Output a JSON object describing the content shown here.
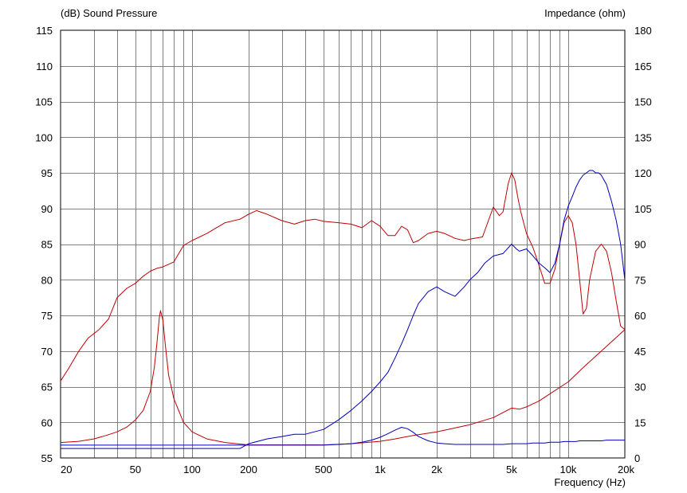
{
  "chart_data": {
    "type": "line",
    "xlabel": "Frequency  (Hz)",
    "ylabel_left": "(dB)  Sound Pressure",
    "ylabel_right": "Impedance  (ohm)",
    "x_scale": "log",
    "xlim": [
      20,
      20000
    ],
    "ylim_left": [
      55,
      115
    ],
    "ylim_right": [
      0,
      180
    ],
    "grid": true,
    "x_ticks": [
      {
        "v": 20,
        "label": "20"
      },
      {
        "v": 50,
        "label": "50"
      },
      {
        "v": 100,
        "label": "100"
      },
      {
        "v": 200,
        "label": "200"
      },
      {
        "v": 500,
        "label": "500"
      },
      {
        "v": 1000,
        "label": "1k"
      },
      {
        "v": 2000,
        "label": "2k"
      },
      {
        "v": 5000,
        "label": "5k"
      },
      {
        "v": 10000,
        "label": "10k"
      },
      {
        "v": 20000,
        "label": "20k"
      }
    ],
    "y_ticks_left": [
      "55",
      "60",
      "65",
      "70",
      "75",
      "80",
      "85",
      "90",
      "95",
      "100",
      "105",
      "110",
      "115"
    ],
    "y_ticks_right": [
      "0",
      "15",
      "30",
      "45",
      "60",
      "75",
      "90",
      "105",
      "120",
      "135",
      "150",
      "165",
      "180"
    ],
    "colors": {
      "red": "#c00000",
      "blue": "#0000c0",
      "grid": "#808080",
      "axis": "#000000"
    },
    "series": [
      {
        "color": "red",
        "axis": "left",
        "x": [
          20,
          22,
          25,
          28,
          32,
          36,
          40,
          45,
          50,
          55,
          60,
          65,
          70,
          80,
          90,
          100,
          120,
          150,
          180,
          200,
          220,
          250,
          300,
          350,
          400,
          450,
          500,
          600,
          700,
          800,
          850,
          900,
          1000,
          1100,
          1200,
          1300,
          1400,
          1500,
          1600,
          1800,
          2000,
          2200,
          2500,
          2800,
          3000,
          3500,
          4000,
          4300,
          4500,
          4800,
          5000,
          5200,
          5400,
          5600,
          6000,
          6500,
          7000,
          7500,
          8000,
          8500,
          9000,
          9500,
          10000,
          10500,
          11000,
          11500,
          12000,
          12500,
          13000,
          14000,
          15000,
          16000,
          17000,
          18000,
          19000,
          20000
        ],
        "y": [
          65.8,
          67.5,
          70,
          71.8,
          73,
          74.5,
          77.5,
          78.8,
          79.5,
          80.5,
          81.2,
          81.6,
          81.8,
          82.5,
          84.8,
          85.5,
          86.5,
          88,
          88.5,
          89.2,
          89.7,
          89.2,
          88.3,
          87.8,
          88.3,
          88.5,
          88.2,
          88,
          87.8,
          87.3,
          87.8,
          88.3,
          87.5,
          86.2,
          86.2,
          87.5,
          87,
          85.2,
          85.5,
          86.5,
          86.8,
          86.5,
          85.8,
          85.5,
          85.7,
          86,
          90.2,
          89,
          89.5,
          93.5,
          95,
          94,
          91.5,
          89.5,
          86.5,
          84.5,
          82,
          79.5,
          79.5,
          81.5,
          85,
          88,
          89,
          88,
          85,
          80,
          75.2,
          76,
          80,
          84,
          85,
          84,
          81,
          77,
          73.5,
          73
        ]
      },
      {
        "color": "red",
        "axis": "right",
        "x": [
          20,
          25,
          30,
          35,
          40,
          45,
          50,
          55,
          60,
          63,
          65,
          67,
          68,
          70,
          72,
          75,
          80,
          90,
          100,
          120,
          150,
          200,
          300,
          500,
          700,
          1000,
          1200,
          1500,
          2000,
          3000,
          4000,
          5000,
          5500,
          6000,
          7000,
          8000,
          10000,
          12000,
          15000,
          20000
        ],
        "y": [
          6.5,
          7,
          8,
          9.5,
          11,
          13,
          16,
          20,
          28,
          38,
          48,
          59,
          62,
          58,
          48,
          35,
          25,
          15,
          11,
          8,
          6.5,
          5.5,
          5.5,
          5.5,
          6,
          7,
          8,
          9.5,
          11,
          14,
          17,
          21,
          20.5,
          21.5,
          24,
          27,
          32,
          38,
          45,
          54
        ]
      },
      {
        "color": "blue",
        "axis": "right",
        "x": [
          20,
          50,
          100,
          150,
          180,
          200,
          250,
          300,
          350,
          400,
          500,
          600,
          700,
          800,
          900,
          1000,
          1100,
          1200,
          1300,
          1400,
          1500,
          1600,
          1800,
          2000,
          2200,
          2500,
          2800,
          3000,
          3300,
          3600,
          4000,
          4500,
          5000,
          5300,
          5500,
          6000,
          6500,
          7000,
          7500,
          8000,
          8500,
          9000,
          9500,
          10000,
          10500,
          11000,
          11500,
          12000,
          12500,
          13000,
          13500,
          14000,
          14500,
          15000,
          16000,
          17000,
          18000,
          19000,
          20000
        ],
        "y": [
          4,
          4,
          4,
          4,
          4,
          6,
          8,
          9,
          10,
          10,
          12,
          16,
          20,
          24,
          28,
          32,
          36,
          42,
          48,
          54,
          60,
          65,
          70,
          72,
          70,
          68,
          72,
          75,
          78,
          82,
          85,
          86,
          90,
          88,
          87,
          88,
          85,
          82,
          80,
          78,
          82,
          90,
          100,
          106,
          110,
          114,
          117,
          119,
          120,
          121,
          121,
          120,
          120,
          119,
          115,
          108,
          100,
          90,
          75
        ]
      },
      {
        "color": "blue",
        "axis": "left",
        "x": [
          20,
          50,
          100,
          150,
          180,
          200,
          250,
          300,
          350,
          400,
          500,
          600,
          700,
          800,
          900,
          1000,
          1100,
          1200,
          1300,
          1400,
          1500,
          1600,
          1800,
          2000,
          2200,
          2500,
          2800,
          3000,
          3300,
          3600,
          4000,
          4500,
          5000,
          5300,
          5500,
          6000,
          6500,
          7000,
          7500,
          8000,
          8500,
          9000,
          9500,
          10000,
          10500,
          11000,
          11500,
          12000,
          12500,
          13000,
          13500,
          14000,
          14500,
          15000,
          16000,
          17000,
          18000,
          19000,
          20000
        ],
        "y": [
          56.8,
          56.8,
          56.8,
          56.8,
          56.8,
          56.8,
          56.8,
          56.8,
          56.8,
          56.8,
          56.8,
          56.9,
          57.0,
          57.2,
          57.5,
          57.9,
          58.4,
          58.9,
          59.3,
          59.1,
          58.6,
          58.0,
          57.4,
          57.1,
          57.0,
          56.9,
          56.9,
          56.9,
          56.9,
          56.9,
          56.9,
          56.9,
          57.0,
          57.0,
          57.0,
          57.0,
          57.1,
          57.1,
          57.1,
          57.2,
          57.2,
          57.2,
          57.3,
          57.3,
          57.3,
          57.3,
          57.4,
          57.4,
          57.4,
          57.4,
          57.4,
          57.4,
          57.4,
          57.4,
          57.5,
          57.5,
          57.5,
          57.5,
          57.5
        ]
      }
    ]
  }
}
